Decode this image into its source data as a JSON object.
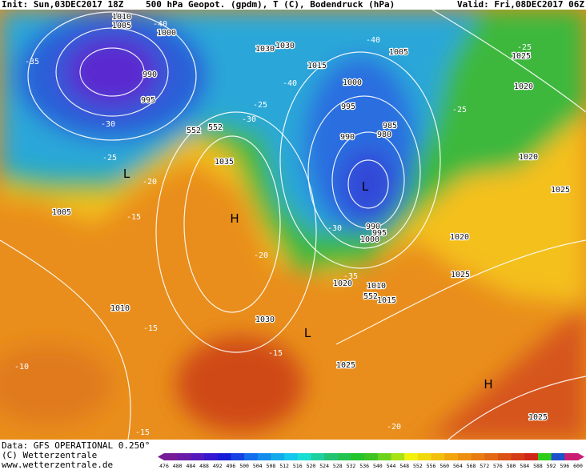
{
  "header": {
    "init": "Init: Sun,03DEC2017 18Z",
    "title": "500 hPa Geopot. (gpdm), T (C), Bodendruck (hPa)",
    "valid": "Valid: Fri,08DEC2017 06Z"
  },
  "footer": {
    "data": "Data: GFS OPERATIONAL 0.250°",
    "copyright": "(C) Wetterzentrale",
    "url": "www.wetterzentrale.de"
  },
  "colorbar": {
    "labels": [
      476,
      480,
      484,
      488,
      492,
      496,
      500,
      504,
      508,
      512,
      516,
      520,
      524,
      528,
      532,
      536,
      540,
      544,
      548,
      552,
      556,
      560,
      564,
      568,
      572,
      576,
      580,
      584,
      588,
      592,
      596,
      600
    ]
  },
  "map": {
    "labels": [
      "1010",
      "1005",
      "1000",
      "-40",
      "990",
      "995",
      "-35",
      "-30",
      "-25",
      "L",
      "-20",
      "552",
      "1005",
      "-15",
      "1010",
      "-10",
      "-15",
      "1030",
      "1030",
      "1015",
      "-40",
      "-30",
      "-25",
      "552",
      "1035",
      "H",
      "-20",
      "1030",
      "-15",
      "L",
      "1025",
      "1005",
      "1000",
      "995",
      "985",
      "980",
      "990",
      "L",
      "990",
      "995",
      "1000",
      "-30",
      "1020",
      "-35",
      "552",
      "1015",
      "1010",
      "-40",
      "-25",
      "1025",
      "1020",
      "-25",
      "1020",
      "1025",
      "1020",
      "1025",
      "H",
      "1025",
      "-20",
      "-15"
    ]
  }
}
